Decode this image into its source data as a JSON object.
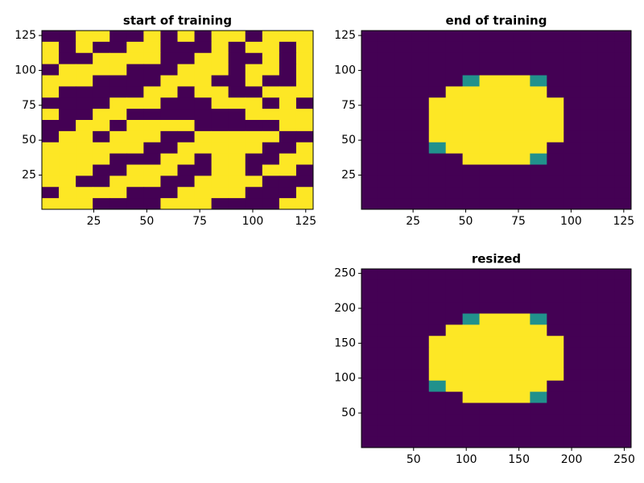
{
  "chart_data": [
    {
      "type": "heatmap",
      "title": "start of training",
      "xlim": [
        0.5,
        128.5
      ],
      "ylim": [
        0.5,
        128.5
      ],
      "xticks": [
        25,
        50,
        75,
        100,
        125
      ],
      "yticks": [
        25,
        50,
        75,
        100,
        125
      ],
      "colormap": [
        "#440154",
        "#21918c",
        "#fde725"
      ],
      "z": [
        [
          0,
          0,
          1,
          1,
          0,
          0,
          1,
          0,
          1,
          0,
          1,
          1,
          0,
          1,
          1,
          1
        ],
        [
          1,
          0,
          1,
          0,
          0,
          1,
          1,
          0,
          0,
          0,
          1,
          0,
          1,
          1,
          0,
          1
        ],
        [
          1,
          0,
          0,
          1,
          1,
          1,
          1,
          0,
          0,
          1,
          1,
          0,
          0,
          1,
          0,
          1
        ],
        [
          0,
          1,
          1,
          1,
          1,
          0,
          0,
          0,
          1,
          1,
          1,
          0,
          1,
          1,
          0,
          1
        ],
        [
          1,
          1,
          1,
          0,
          0,
          0,
          0,
          1,
          1,
          1,
          0,
          0,
          1,
          0,
          0,
          1
        ],
        [
          1,
          0,
          0,
          0,
          0,
          0,
          1,
          1,
          0,
          1,
          1,
          0,
          0,
          1,
          1,
          1
        ],
        [
          0,
          0,
          0,
          0,
          1,
          1,
          1,
          0,
          0,
          0,
          1,
          1,
          1,
          0,
          1,
          0
        ],
        [
          1,
          0,
          0,
          1,
          1,
          0,
          0,
          0,
          0,
          0,
          0,
          0,
          1,
          1,
          1,
          1
        ],
        [
          0,
          0,
          1,
          1,
          0,
          1,
          1,
          1,
          1,
          0,
          0,
          0,
          0,
          0,
          1,
          1
        ],
        [
          0,
          1,
          1,
          0,
          1,
          1,
          1,
          0,
          0,
          1,
          1,
          1,
          1,
          1,
          0,
          0
        ],
        [
          1,
          1,
          1,
          1,
          1,
          1,
          0,
          0,
          1,
          1,
          1,
          1,
          1,
          0,
          0,
          1
        ],
        [
          1,
          1,
          1,
          1,
          0,
          0,
          0,
          1,
          1,
          0,
          1,
          1,
          0,
          0,
          1,
          1
        ],
        [
          1,
          1,
          1,
          0,
          0,
          1,
          1,
          1,
          0,
          0,
          1,
          1,
          0,
          1,
          1,
          0
        ],
        [
          1,
          1,
          0,
          0,
          1,
          1,
          1,
          0,
          0,
          1,
          1,
          1,
          1,
          0,
          0,
          0
        ],
        [
          0,
          1,
          1,
          1,
          1,
          0,
          0,
          0,
          1,
          1,
          1,
          1,
          0,
          0,
          0,
          1
        ],
        [
          1,
          1,
          1,
          0,
          0,
          0,
          0,
          1,
          1,
          1,
          0,
          0,
          0,
          0,
          1,
          1
        ]
      ]
    },
    {
      "type": "heatmap",
      "title": "end of training",
      "xlim": [
        0.5,
        128.5
      ],
      "ylim": [
        0.5,
        128.5
      ],
      "xticks": [
        25,
        50,
        75,
        100,
        125
      ],
      "yticks": [
        25,
        50,
        75,
        100,
        125
      ],
      "colormap": [
        "#440154",
        "#21918c",
        "#fde725"
      ],
      "z": [
        [
          0,
          0,
          0,
          0,
          0,
          0,
          0,
          0,
          0,
          0,
          0,
          0,
          0,
          0,
          0,
          0
        ],
        [
          0,
          0,
          0,
          0,
          0,
          0,
          0,
          0,
          0,
          0,
          0,
          0,
          0,
          0,
          0,
          0
        ],
        [
          0,
          0,
          0,
          0,
          0,
          0,
          0,
          0,
          0,
          0,
          0,
          0,
          0,
          0,
          0,
          0
        ],
        [
          0,
          0,
          0,
          0,
          0,
          0,
          0,
          0,
          0,
          0,
          0,
          0,
          0,
          0,
          0,
          0
        ],
        [
          0,
          0,
          0,
          0,
          0,
          0,
          0.5,
          1,
          1,
          1,
          0.5,
          0,
          0,
          0,
          0,
          0
        ],
        [
          0,
          0,
          0,
          0,
          0,
          1,
          1,
          1,
          1,
          1,
          1,
          0,
          0,
          0,
          0,
          0
        ],
        [
          0,
          0,
          0,
          0,
          1,
          1,
          1,
          1,
          1,
          1,
          1,
          1,
          0,
          0,
          0,
          0
        ],
        [
          0,
          0,
          0,
          0,
          1,
          1,
          1,
          1,
          1,
          1,
          1,
          1,
          0,
          0,
          0,
          0
        ],
        [
          0,
          0,
          0,
          0,
          1,
          1,
          1,
          1,
          1,
          1,
          1,
          1,
          0,
          0,
          0,
          0
        ],
        [
          0,
          0,
          0,
          0,
          1,
          1,
          1,
          1,
          1,
          1,
          1,
          1,
          0,
          0,
          0,
          0
        ],
        [
          0,
          0,
          0,
          0,
          0.5,
          1,
          1,
          1,
          1,
          1,
          1,
          0,
          0,
          0,
          0,
          0
        ],
        [
          0,
          0,
          0,
          0,
          0,
          0,
          1,
          1,
          1,
          1,
          0.5,
          0,
          0,
          0,
          0,
          0
        ],
        [
          0,
          0,
          0,
          0,
          0,
          0,
          0,
          0,
          0,
          0,
          0,
          0,
          0,
          0,
          0,
          0
        ],
        [
          0,
          0,
          0,
          0,
          0,
          0,
          0,
          0,
          0,
          0,
          0,
          0,
          0,
          0,
          0,
          0
        ],
        [
          0,
          0,
          0,
          0,
          0,
          0,
          0,
          0,
          0,
          0,
          0,
          0,
          0,
          0,
          0,
          0
        ],
        [
          0,
          0,
          0,
          0,
          0,
          0,
          0,
          0,
          0,
          0,
          0,
          0,
          0,
          0,
          0,
          0
        ]
      ]
    },
    {
      "type": "heatmap",
      "title": "resized",
      "xlim": [
        0.5,
        256.5
      ],
      "ylim": [
        0.5,
        256.5
      ],
      "xticks": [
        50,
        100,
        150,
        200,
        250
      ],
      "yticks": [
        50,
        100,
        150,
        200,
        250
      ],
      "colormap": [
        "#440154",
        "#21918c",
        "#fde725"
      ],
      "z": [
        [
          0,
          0,
          0,
          0,
          0,
          0,
          0,
          0,
          0,
          0,
          0,
          0,
          0,
          0,
          0,
          0
        ],
        [
          0,
          0,
          0,
          0,
          0,
          0,
          0,
          0,
          0,
          0,
          0,
          0,
          0,
          0,
          0,
          0
        ],
        [
          0,
          0,
          0,
          0,
          0,
          0,
          0,
          0,
          0,
          0,
          0,
          0,
          0,
          0,
          0,
          0
        ],
        [
          0,
          0,
          0,
          0,
          0,
          0,
          0,
          0,
          0,
          0,
          0,
          0,
          0,
          0,
          0,
          0
        ],
        [
          0,
          0,
          0,
          0,
          0,
          0,
          0.5,
          1,
          1,
          1,
          0.5,
          0,
          0,
          0,
          0,
          0
        ],
        [
          0,
          0,
          0,
          0,
          0,
          1,
          1,
          1,
          1,
          1,
          1,
          0,
          0,
          0,
          0,
          0
        ],
        [
          0,
          0,
          0,
          0,
          1,
          1,
          1,
          1,
          1,
          1,
          1,
          1,
          0,
          0,
          0,
          0
        ],
        [
          0,
          0,
          0,
          0,
          1,
          1,
          1,
          1,
          1,
          1,
          1,
          1,
          0,
          0,
          0,
          0
        ],
        [
          0,
          0,
          0,
          0,
          1,
          1,
          1,
          1,
          1,
          1,
          1,
          1,
          0,
          0,
          0,
          0
        ],
        [
          0,
          0,
          0,
          0,
          1,
          1,
          1,
          1,
          1,
          1,
          1,
          1,
          0,
          0,
          0,
          0
        ],
        [
          0,
          0,
          0,
          0,
          0.5,
          1,
          1,
          1,
          1,
          1,
          1,
          0,
          0,
          0,
          0,
          0
        ],
        [
          0,
          0,
          0,
          0,
          0,
          0,
          1,
          1,
          1,
          1,
          0.5,
          0,
          0,
          0,
          0,
          0
        ],
        [
          0,
          0,
          0,
          0,
          0,
          0,
          0,
          0,
          0,
          0,
          0,
          0,
          0,
          0,
          0,
          0
        ],
        [
          0,
          0,
          0,
          0,
          0,
          0,
          0,
          0,
          0,
          0,
          0,
          0,
          0,
          0,
          0,
          0
        ],
        [
          0,
          0,
          0,
          0,
          0,
          0,
          0,
          0,
          0,
          0,
          0,
          0,
          0,
          0,
          0,
          0
        ],
        [
          0,
          0,
          0,
          0,
          0,
          0,
          0,
          0,
          0,
          0,
          0,
          0,
          0,
          0,
          0,
          0
        ]
      ]
    }
  ]
}
